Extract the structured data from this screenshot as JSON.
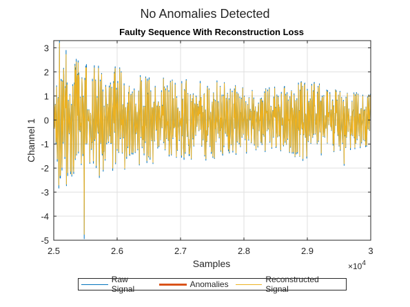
{
  "figure": {
    "suptitle": "No Anomalies Detected"
  },
  "chart_data": {
    "type": "line",
    "title": "Faulty Sequence With Reconstruction Loss",
    "xlabel": "Samples",
    "ylabel": "Channel 1",
    "xlim": [
      25000,
      30000
    ],
    "ylim": [
      -5,
      3.3
    ],
    "x_ticks": [
      25000,
      26000,
      27000,
      28000,
      29000,
      30000
    ],
    "x_tick_labels": [
      "2.5",
      "2.6",
      "2.7",
      "2.8",
      "2.9",
      "3"
    ],
    "x_exponent_label": "×10",
    "x_exponent_power": "4",
    "y_ticks": [
      -5,
      -4,
      -3,
      -2,
      -1,
      0,
      1,
      2,
      3
    ],
    "y_tick_labels": [
      "-5",
      "-4",
      "-3",
      "-2",
      "-1",
      "0",
      "1",
      "2",
      "3"
    ],
    "grid": true,
    "legend_position": "bottom-outside",
    "series": [
      {
        "name": "Raw Signal",
        "color": "#0072bd",
        "line_width": 1
      },
      {
        "name": "Anomalies",
        "color": "#d95319",
        "line_width": 3
      },
      {
        "name": "Reconstructed Signal",
        "color": "#edb120",
        "line_width": 1
      }
    ],
    "waveform_envelope": {
      "x": [
        25000,
        25100,
        25300,
        25500,
        25700,
        26000,
        26300,
        26700,
        27000,
        27500,
        28000,
        28500,
        29000,
        29500,
        30000
      ],
      "amplitude": [
        2.9,
        3.3,
        2.6,
        2.4,
        2.6,
        2.3,
        2.0,
        1.8,
        1.7,
        1.7,
        1.4,
        1.4,
        1.7,
        1.3,
        1.2
      ]
    },
    "notable_points": [
      {
        "x": 25090,
        "y": 3.3
      },
      {
        "x": 25480,
        "y": -4.95
      },
      {
        "x": 29580,
        "y": -1.9
      },
      {
        "x": 28930,
        "y": -1.7
      }
    ]
  }
}
